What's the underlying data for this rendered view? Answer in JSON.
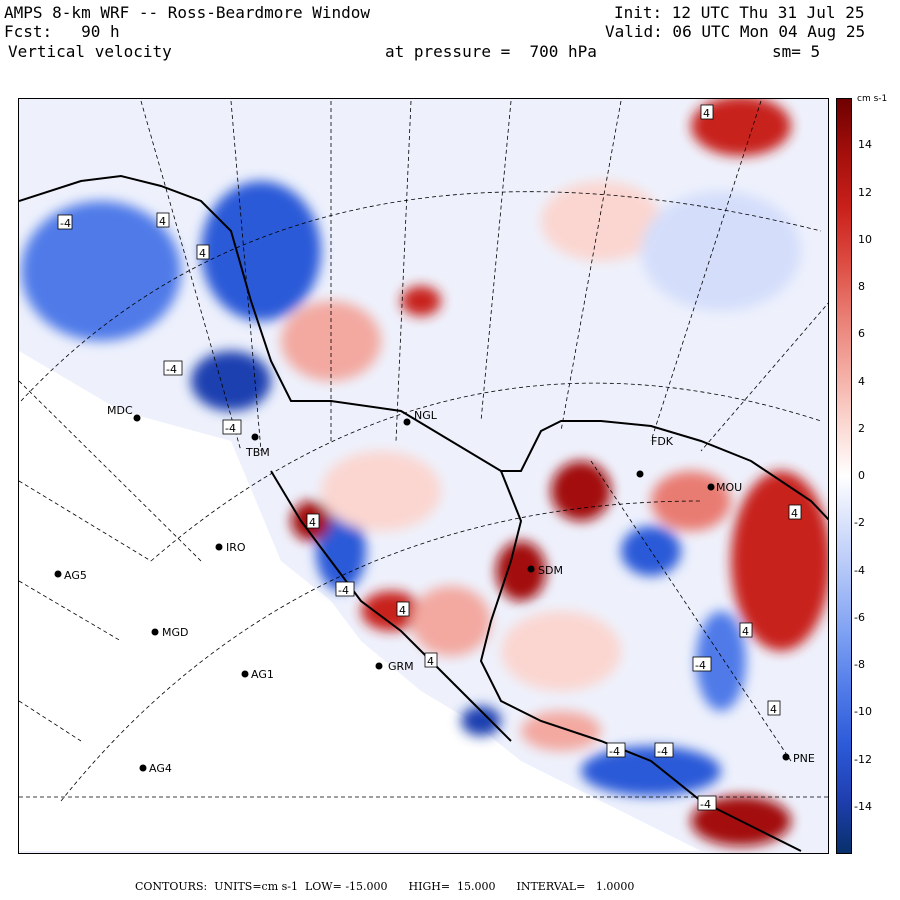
{
  "header": {
    "model": "AMPS 8-km WRF -- Ross-Beardmore Window",
    "fcst": "Fcst:   90 h",
    "field": "Vertical velocity",
    "level": "at pressure =  700 hPa",
    "init": "Init: 12 UTC Thu 31 Jul 25",
    "valid": "Valid: 06 UTC Mon 04 Aug 25",
    "smooth": "sm= 5"
  },
  "colorbar": {
    "units": "cm s-1",
    "ticks": [
      "14",
      "12",
      "10",
      "8",
      "6",
      "4",
      "2",
      "0",
      "-2",
      "-4",
      "-6",
      "-8",
      "-10",
      "-12",
      "-14"
    ],
    "colors": [
      "#08306b",
      "#1f3fb0",
      "#2c5ad8",
      "#4f7ae8",
      "#7a9ef2",
      "#a9bff7",
      "#d4defb",
      "#ffffff",
      "#fbd6d0",
      "#f3a9a0",
      "#e97c72",
      "#dc4a40",
      "#c8201a",
      "#a30f0c",
      "#6e0000"
    ]
  },
  "stations": [
    {
      "id": "MDC",
      "label": "MDC"
    },
    {
      "id": "NGL",
      "label": "NGL"
    },
    {
      "id": "TBM",
      "label": "TBM"
    },
    {
      "id": "FDK",
      "label": "FDK"
    },
    {
      "id": "MOU",
      "label": "MOU"
    },
    {
      "id": "IRO",
      "label": "IRO"
    },
    {
      "id": "AG5",
      "label": "AG5"
    },
    {
      "id": "SDM",
      "label": "SDM"
    },
    {
      "id": "MGD",
      "label": "MGD"
    },
    {
      "id": "AG1",
      "label": "AG1"
    },
    {
      "id": "GRM",
      "label": "GRM"
    },
    {
      "id": "AG4",
      "label": "AG4"
    },
    {
      "id": "PNE",
      "label": "PNE"
    }
  ],
  "contour_labels": [
    "-4",
    "4",
    "-4",
    "-4",
    "4",
    "4",
    "4",
    "-4",
    "4",
    "-4",
    "4",
    "-4",
    "-4",
    "4",
    "4",
    "4",
    "-4"
  ],
  "footer": {
    "text": "CONTOURS:  UNITS=cm s-1  LOW= -15.000      HIGH=  15.000      INTERVAL=   1.0000"
  }
}
